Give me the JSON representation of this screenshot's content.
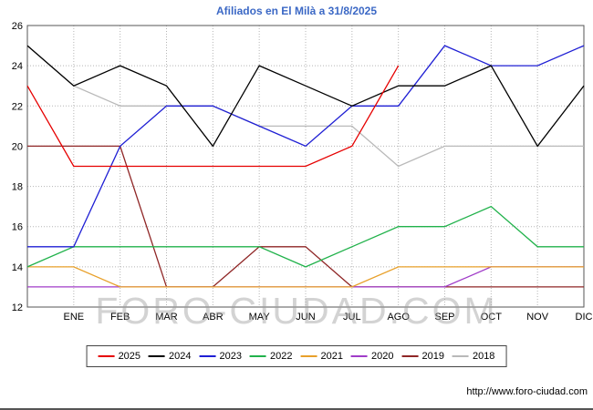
{
  "header": {
    "title": "Afiliados en El Milà a 31/8/2025"
  },
  "watermark": {
    "text": "FORO-CIUDAD.COM"
  },
  "footer": {
    "url": "http://www.foro-ciudad.com"
  },
  "chart_data": {
    "type": "line",
    "title": "Afiliados en El Milà a 31/8/2025",
    "xlabel": "",
    "ylabel": "",
    "ylim": [
      12,
      26
    ],
    "yticks": [
      12,
      14,
      16,
      18,
      20,
      22,
      24,
      26
    ],
    "grid": true,
    "legend_position": "bottom",
    "categories": [
      "ENE",
      "FEB",
      "MAR",
      "ABR",
      "MAY",
      "JUN",
      "JUL",
      "AGO",
      "SEP",
      "OCT",
      "NOV",
      "DIC"
    ],
    "series": [
      {
        "name": "2025",
        "color": "#e60000",
        "start": 23,
        "values": [
          19,
          19,
          19,
          19,
          19,
          19,
          20,
          24
        ]
      },
      {
        "name": "2024",
        "color": "#000000",
        "start": 25,
        "values": [
          23,
          24,
          23,
          20,
          24,
          23,
          22,
          23,
          23,
          24,
          20,
          23
        ]
      },
      {
        "name": "2023",
        "color": "#1f1fd4",
        "start": 15,
        "values": [
          15,
          20,
          22,
          22,
          21,
          20,
          22,
          22,
          25,
          24,
          24,
          25
        ]
      },
      {
        "name": "2022",
        "color": "#21b24b",
        "start": 14,
        "values": [
          15,
          15,
          15,
          15,
          15,
          14,
          15,
          16,
          16,
          17,
          15,
          15
        ]
      },
      {
        "name": "2021",
        "color": "#e8a02a",
        "start": 14,
        "values": [
          14,
          13,
          13,
          13,
          13,
          13,
          13,
          14,
          14,
          14,
          14,
          14
        ]
      },
      {
        "name": "2020",
        "color": "#a03cc8",
        "start": 13,
        "values": [
          13,
          13,
          13,
          13,
          13,
          13,
          13,
          13,
          13,
          14,
          14,
          14
        ]
      },
      {
        "name": "2019",
        "color": "#8f2626",
        "start": 20,
        "values": [
          20,
          20,
          13,
          13,
          15,
          15,
          13,
          13,
          13,
          13,
          13,
          13
        ]
      },
      {
        "name": "2018",
        "color": "#b9b9b9",
        "start": 25,
        "values": [
          23,
          22,
          22,
          22,
          21,
          21,
          21,
          19,
          20,
          20,
          20,
          20
        ]
      }
    ]
  }
}
